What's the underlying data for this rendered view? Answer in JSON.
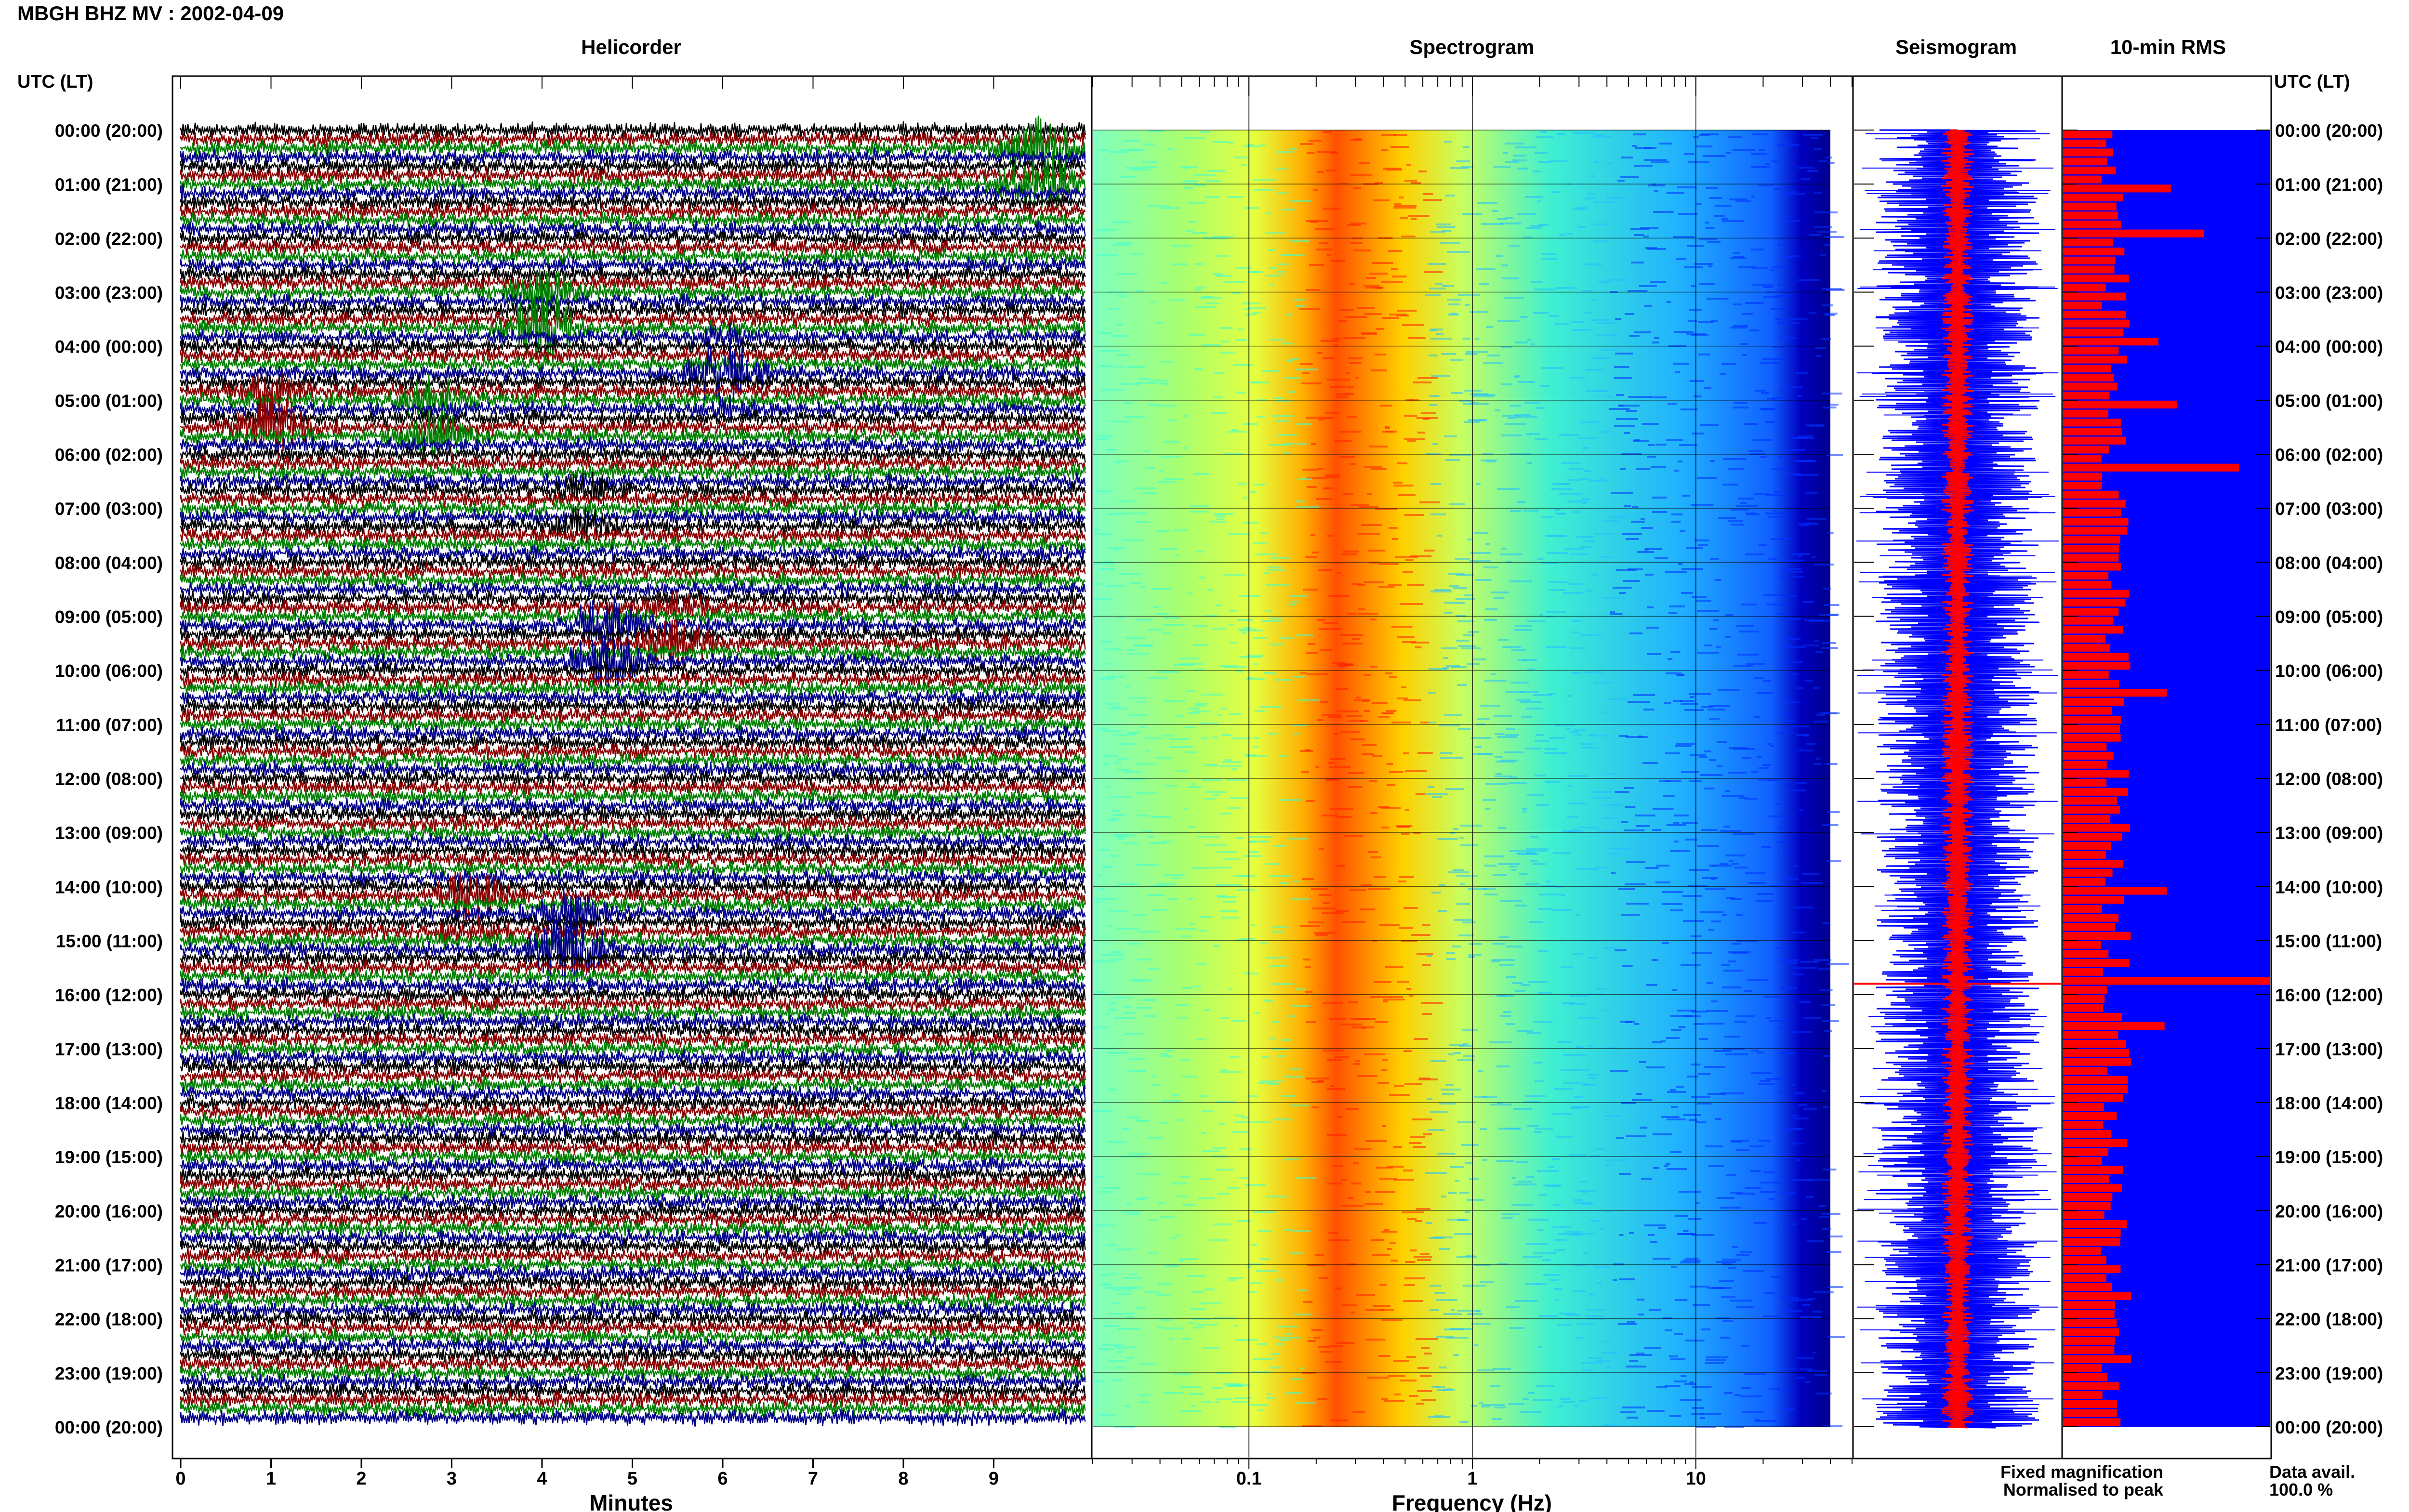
{
  "header": {
    "station_title": "MBGH BHZ MV : 2002-04-09"
  },
  "panels": {
    "helicorder": "Helicorder",
    "spectrogram": "Spectrogram",
    "seismogram": "Seismogram",
    "rms": "10-min RMS"
  },
  "axis_labels": {
    "time_left": "UTC (LT)",
    "time_right": "UTC (LT)",
    "minutes": "Minutes",
    "frequency": "Frequency (Hz)"
  },
  "legend": {
    "fixed": "Fixed magnification",
    "normalised": "Normalised to peak",
    "fixed_color": "#0000ff",
    "normalised_color": "#ff0000"
  },
  "data_availability": {
    "label": "Data avail.",
    "value": "100.0 %"
  },
  "time_ticks": [
    "00:00 (20:00)",
    "01:00 (21:00)",
    "02:00 (22:00)",
    "03:00 (23:00)",
    "04:00 (00:00)",
    "05:00 (01:00)",
    "06:00 (02:00)",
    "07:00 (03:00)",
    "08:00 (04:00)",
    "09:00 (05:00)",
    "10:00 (06:00)",
    "11:00 (07:00)",
    "12:00 (08:00)",
    "13:00 (09:00)",
    "14:00 (10:00)",
    "15:00 (11:00)",
    "16:00 (12:00)",
    "17:00 (13:00)",
    "18:00 (14:00)",
    "19:00 (15:00)",
    "20:00 (16:00)",
    "21:00 (17:00)",
    "22:00 (18:00)",
    "23:00 (19:00)",
    "00:00 (20:00)"
  ],
  "chart_data": [
    {
      "type": "line",
      "panel": "Helicorder",
      "xlabel": "Minutes",
      "x_ticks": [
        "0",
        "1",
        "2",
        "3",
        "4",
        "5",
        "6",
        "7",
        "8",
        "9"
      ],
      "xlim": [
        0,
        10
      ],
      "rows": 144,
      "row_minutes": 10,
      "trace_colors": [
        "#000000",
        "#8b0000",
        "#008000",
        "#00008b"
      ],
      "events": [
        {
          "hour": 0.7,
          "minute": 9.5,
          "color": "#008000",
          "amp": 1.0
        },
        {
          "hour": 3.5,
          "minute": 4.0,
          "color": "#008000",
          "amp": 0.8
        },
        {
          "hour": 4.5,
          "minute": 6.0,
          "color": "#00008b",
          "amp": 0.6
        },
        {
          "hour": 5.3,
          "minute": 1.0,
          "color": "#8b0000",
          "amp": 0.7
        },
        {
          "hour": 5.3,
          "minute": 2.8,
          "color": "#008000",
          "amp": 0.6
        },
        {
          "hour": 7.0,
          "minute": 4.5,
          "color": "#000000",
          "amp": 0.4
        },
        {
          "hour": 9.5,
          "minute": 4.7,
          "color": "#00008b",
          "amp": 0.8
        },
        {
          "hour": 9.3,
          "minute": 5.5,
          "color": "#8b0000",
          "amp": 0.5
        },
        {
          "hour": 14.3,
          "minute": 3.2,
          "color": "#8b0000",
          "amp": 0.5
        },
        {
          "hour": 15.0,
          "minute": 4.3,
          "color": "#00008b",
          "amp": 0.9
        }
      ]
    },
    {
      "type": "heatmap",
      "panel": "Spectrogram",
      "xlabel": "Frequency (Hz)",
      "x_scale": "log",
      "xlim": [
        0.02,
        50
      ],
      "x_tick_labels": [
        "0.1",
        "1",
        "10"
      ],
      "x_tick_values": [
        0.1,
        1,
        10
      ],
      "peak_band_hz": [
        0.2,
        0.5
      ],
      "colormap": [
        "#00008b",
        "#0000ff",
        "#00aaff",
        "#00e5e5",
        "#7fff7f",
        "#ffff00",
        "#ff7f00",
        "#cc0000"
      ]
    },
    {
      "type": "line",
      "panel": "Seismogram",
      "series": [
        {
          "name": "Fixed magnification",
          "color": "#0000ff"
        },
        {
          "name": "Normalised to peak",
          "color": "#ff0000"
        }
      ]
    },
    {
      "type": "bar",
      "panel": "10-min RMS",
      "bins": 144,
      "bin_minutes": 10,
      "series": [
        {
          "name": "Fixed magnification",
          "color": "#0000ff",
          "level": 1.0
        },
        {
          "name": "Normalised to peak",
          "color": "#ff0000",
          "typical_fraction": 0.33,
          "peaks": [
            {
              "hour": 1.1,
              "fraction": 0.52
            },
            {
              "hour": 1.95,
              "fraction": 0.68
            },
            {
              "hour": 3.95,
              "fraction": 0.46
            },
            {
              "hour": 5.05,
              "fraction": 0.55
            },
            {
              "hour": 6.2,
              "fraction": 0.85
            },
            {
              "hour": 10.4,
              "fraction": 0.5
            },
            {
              "hour": 14.05,
              "fraction": 0.5
            },
            {
              "hour": 15.8,
              "fraction": 1.0
            },
            {
              "hour": 16.6,
              "fraction": 0.49
            }
          ]
        }
      ]
    }
  ]
}
